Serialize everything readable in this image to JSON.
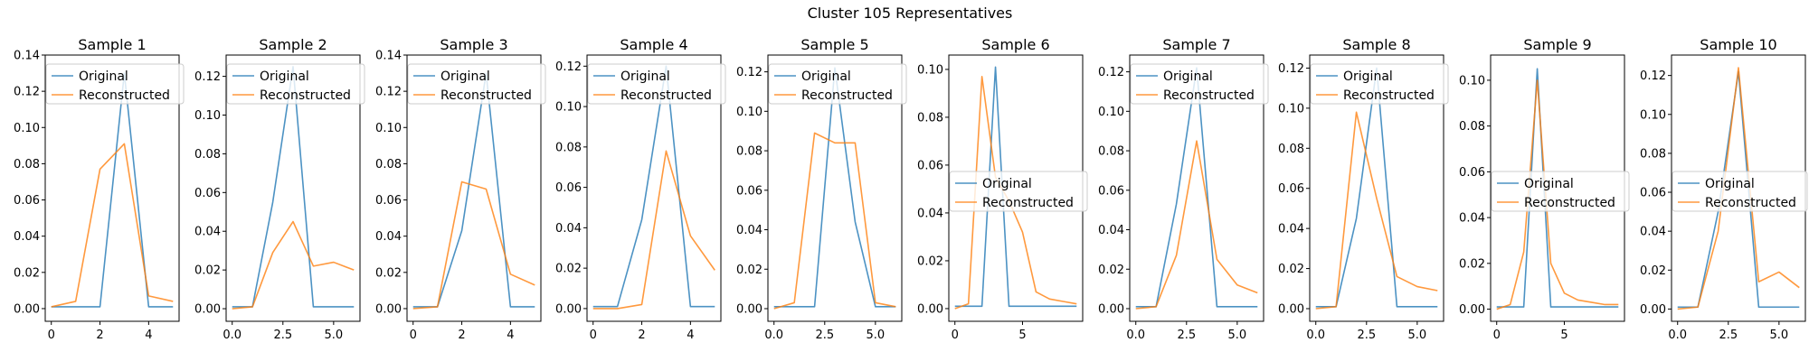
{
  "figure": {
    "suptitle": "Cluster 105 Representatives",
    "colors": {
      "original": "#1f77b4",
      "reconstructed": "#ff7f0e"
    }
  },
  "chart_data": [
    {
      "type": "line",
      "title": "Sample 1",
      "xlim": [
        -0.25,
        5.25
      ],
      "ylim": [
        -0.007,
        0.14
      ],
      "xticks": [
        0,
        2,
        4
      ],
      "xtick_labels": [
        "0",
        "2",
        "4"
      ],
      "yticks": [
        0,
        0.02,
        0.04,
        0.06,
        0.08,
        0.1,
        0.12,
        0.14
      ],
      "ytick_labels": [
        "0.00",
        "0.02",
        "0.04",
        "0.06",
        "0.08",
        "0.10",
        "0.12",
        "0.14"
      ],
      "legend": "top-left",
      "series": [
        {
          "name": "Original",
          "x": [
            0,
            1,
            2,
            3,
            4,
            5
          ],
          "y": [
            0.001,
            0.001,
            0.001,
            0.13,
            0.001,
            0.001
          ]
        },
        {
          "name": "Reconstructed",
          "x": [
            0,
            1,
            2,
            3,
            4,
            5
          ],
          "y": [
            0.001,
            0.004,
            0.077,
            0.091,
            0.007,
            0.004
          ]
        }
      ]
    },
    {
      "type": "line",
      "title": "Sample 2",
      "xlim": [
        -0.3,
        6.3
      ],
      "ylim": [
        -0.0065,
        0.131
      ],
      "xticks": [
        0,
        2.5,
        5
      ],
      "xtick_labels": [
        "0.0",
        "2.5",
        "5.0"
      ],
      "yticks": [
        0,
        0.02,
        0.04,
        0.06,
        0.08,
        0.1,
        0.12
      ],
      "ytick_labels": [
        "0.00",
        "0.02",
        "0.04",
        "0.06",
        "0.08",
        "0.10",
        "0.12"
      ],
      "legend": "top-left",
      "series": [
        {
          "name": "Original",
          "x": [
            0,
            1,
            2,
            3,
            4,
            5,
            6
          ],
          "y": [
            0.001,
            0.001,
            0.055,
            0.125,
            0.001,
            0.001,
            0.001
          ]
        },
        {
          "name": "Reconstructed",
          "x": [
            0,
            1,
            2,
            3,
            4,
            5,
            6
          ],
          "y": [
            0.0,
            0.001,
            0.029,
            0.045,
            0.022,
            0.024,
            0.02
          ]
        }
      ]
    },
    {
      "type": "line",
      "title": "Sample 3",
      "xlim": [
        -0.25,
        5.25
      ],
      "ylim": [
        -0.007,
        0.14
      ],
      "xticks": [
        0,
        2,
        4
      ],
      "xtick_labels": [
        "0",
        "2",
        "4"
      ],
      "yticks": [
        0,
        0.02,
        0.04,
        0.06,
        0.08,
        0.1,
        0.12,
        0.14
      ],
      "ytick_labels": [
        "0.00",
        "0.02",
        "0.04",
        "0.06",
        "0.08",
        "0.10",
        "0.12",
        "0.14"
      ],
      "legend": "top-left",
      "series": [
        {
          "name": "Original",
          "x": [
            0,
            1,
            2,
            3,
            4,
            5
          ],
          "y": [
            0.001,
            0.001,
            0.043,
            0.13,
            0.001,
            0.001
          ]
        },
        {
          "name": "Reconstructed",
          "x": [
            0,
            1,
            2,
            3,
            4,
            5
          ],
          "y": [
            0.0,
            0.001,
            0.07,
            0.066,
            0.019,
            0.013
          ]
        }
      ]
    },
    {
      "type": "line",
      "title": "Sample 4",
      "xlim": [
        -0.25,
        5.25
      ],
      "ylim": [
        -0.0063,
        0.1255
      ],
      "xticks": [
        0,
        2,
        4
      ],
      "xtick_labels": [
        "0",
        "2",
        "4"
      ],
      "yticks": [
        0,
        0.02,
        0.04,
        0.06,
        0.08,
        0.1,
        0.12
      ],
      "ytick_labels": [
        "0.00",
        "0.02",
        "0.04",
        "0.06",
        "0.08",
        "0.10",
        "0.12"
      ],
      "legend": "top-left",
      "series": [
        {
          "name": "Original",
          "x": [
            0,
            1,
            2,
            3,
            4,
            5
          ],
          "y": [
            0.001,
            0.001,
            0.044,
            0.12,
            0.001,
            0.001
          ]
        },
        {
          "name": "Reconstructed",
          "x": [
            0,
            1,
            2,
            3,
            4,
            5
          ],
          "y": [
            0.0,
            0.0,
            0.002,
            0.078,
            0.036,
            0.019
          ]
        }
      ]
    },
    {
      "type": "line",
      "title": "Sample 5",
      "xlim": [
        -0.3,
        6.3
      ],
      "ylim": [
        -0.0064,
        0.1285
      ],
      "xticks": [
        0,
        2.5,
        5
      ],
      "xtick_labels": [
        "0.0",
        "2.5",
        "5.0"
      ],
      "yticks": [
        0,
        0.02,
        0.04,
        0.06,
        0.08,
        0.1,
        0.12
      ],
      "ytick_labels": [
        "0.00",
        "0.02",
        "0.04",
        "0.06",
        "0.08",
        "0.10",
        "0.12"
      ],
      "legend": "top-left",
      "series": [
        {
          "name": "Original",
          "x": [
            0,
            1,
            2,
            3,
            4,
            5,
            6
          ],
          "y": [
            0.001,
            0.001,
            0.001,
            0.122,
            0.044,
            0.001,
            0.001
          ]
        },
        {
          "name": "Reconstructed",
          "x": [
            0,
            1,
            2,
            3,
            4,
            5,
            6
          ],
          "y": [
            0.0,
            0.003,
            0.089,
            0.084,
            0.084,
            0.003,
            0.001
          ]
        }
      ]
    },
    {
      "type": "line",
      "title": "Sample 6",
      "xlim": [
        -0.45,
        9.45
      ],
      "ylim": [
        -0.0053,
        0.106
      ],
      "xticks": [
        0,
        5
      ],
      "xtick_labels": [
        "0",
        "5"
      ],
      "yticks": [
        0,
        0.02,
        0.04,
        0.06,
        0.08,
        0.1
      ],
      "ytick_labels": [
        "0.00",
        "0.02",
        "0.04",
        "0.06",
        "0.08",
        "0.10"
      ],
      "legend": "center-left",
      "series": [
        {
          "name": "Original",
          "x": [
            0,
            1,
            2,
            3,
            4,
            5,
            6,
            7,
            8,
            9
          ],
          "y": [
            0.001,
            0.001,
            0.001,
            0.101,
            0.001,
            0.001,
            0.001,
            0.001,
            0.001,
            0.001
          ]
        },
        {
          "name": "Reconstructed",
          "x": [
            0,
            1,
            2,
            3,
            4,
            5,
            6,
            7,
            8,
            9
          ],
          "y": [
            0.0,
            0.002,
            0.097,
            0.055,
            0.045,
            0.032,
            0.007,
            0.004,
            0.003,
            0.002
          ]
        }
      ]
    },
    {
      "type": "line",
      "title": "Sample 7",
      "xlim": [
        -0.3,
        6.3
      ],
      "ylim": [
        -0.0064,
        0.1285
      ],
      "xticks": [
        0,
        2.5,
        5
      ],
      "xtick_labels": [
        "0.0",
        "2.5",
        "5.0"
      ],
      "yticks": [
        0,
        0.02,
        0.04,
        0.06,
        0.08,
        0.1,
        0.12
      ],
      "ytick_labels": [
        "0.00",
        "0.02",
        "0.04",
        "0.06",
        "0.08",
        "0.10",
        "0.12"
      ],
      "legend": "top-left",
      "series": [
        {
          "name": "Original",
          "x": [
            0,
            1,
            2,
            3,
            4,
            5,
            6
          ],
          "y": [
            0.001,
            0.001,
            0.053,
            0.122,
            0.001,
            0.001,
            0.001
          ]
        },
        {
          "name": "Reconstructed",
          "x": [
            0,
            1,
            2,
            3,
            4,
            5,
            6
          ],
          "y": [
            0.0,
            0.001,
            0.027,
            0.085,
            0.025,
            0.012,
            0.008
          ]
        }
      ]
    },
    {
      "type": "line",
      "title": "Sample 8",
      "xlim": [
        -0.3,
        6.3
      ],
      "ylim": [
        -0.0063,
        0.1265
      ],
      "xticks": [
        0,
        2.5,
        5
      ],
      "xtick_labels": [
        "0.0",
        "2.5",
        "5.0"
      ],
      "yticks": [
        0,
        0.02,
        0.04,
        0.06,
        0.08,
        0.1,
        0.12
      ],
      "ytick_labels": [
        "0.00",
        "0.02",
        "0.04",
        "0.06",
        "0.08",
        "0.10",
        "0.12"
      ],
      "legend": "top-left",
      "series": [
        {
          "name": "Original",
          "x": [
            0,
            1,
            2,
            3,
            4,
            5,
            6
          ],
          "y": [
            0.001,
            0.001,
            0.045,
            0.12,
            0.001,
            0.001,
            0.001
          ]
        },
        {
          "name": "Reconstructed",
          "x": [
            0,
            1,
            2,
            3,
            4,
            5,
            6
          ],
          "y": [
            0.0,
            0.001,
            0.098,
            0.055,
            0.016,
            0.011,
            0.009
          ]
        }
      ]
    },
    {
      "type": "line",
      "title": "Sample 9",
      "xlim": [
        -0.45,
        9.45
      ],
      "ylim": [
        -0.0053,
        0.111
      ],
      "xticks": [
        0,
        5
      ],
      "xtick_labels": [
        "0",
        "5"
      ],
      "yticks": [
        0,
        0.02,
        0.04,
        0.06,
        0.08,
        0.1
      ],
      "ytick_labels": [
        "0.00",
        "0.02",
        "0.04",
        "0.06",
        "0.08",
        "0.10"
      ],
      "legend": "center-left",
      "series": [
        {
          "name": "Original",
          "x": [
            0,
            1,
            2,
            3,
            4,
            5,
            6,
            7,
            8,
            9
          ],
          "y": [
            0.001,
            0.001,
            0.001,
            0.105,
            0.001,
            0.001,
            0.001,
            0.001,
            0.001,
            0.001
          ]
        },
        {
          "name": "Reconstructed",
          "x": [
            0,
            1,
            2,
            3,
            4,
            5,
            6,
            7,
            8,
            9
          ],
          "y": [
            0.0,
            0.002,
            0.025,
            0.1,
            0.02,
            0.007,
            0.004,
            0.003,
            0.002,
            0.002
          ]
        }
      ]
    },
    {
      "type": "line",
      "title": "Sample 10",
      "xlim": [
        -0.3,
        6.3
      ],
      "ylim": [
        -0.0063,
        0.1305
      ],
      "xticks": [
        0,
        2.5,
        5
      ],
      "xtick_labels": [
        "0.0",
        "2.5",
        "5.0"
      ],
      "yticks": [
        0,
        0.02,
        0.04,
        0.06,
        0.08,
        0.1,
        0.12
      ],
      "ytick_labels": [
        "0.00",
        "0.02",
        "0.04",
        "0.06",
        "0.08",
        "0.10",
        "0.12"
      ],
      "legend": "center-left",
      "series": [
        {
          "name": "Original",
          "x": [
            0,
            1,
            2,
            3,
            4,
            5,
            6
          ],
          "y": [
            0.001,
            0.001,
            0.05,
            0.122,
            0.001,
            0.001,
            0.001
          ]
        },
        {
          "name": "Reconstructed",
          "x": [
            0,
            1,
            2,
            3,
            4,
            5,
            6
          ],
          "y": [
            0.0,
            0.001,
            0.04,
            0.124,
            0.014,
            0.019,
            0.011
          ]
        }
      ]
    }
  ]
}
